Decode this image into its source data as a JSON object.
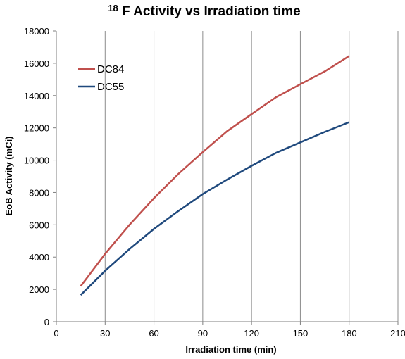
{
  "chart_data": {
    "type": "line",
    "title": {
      "superscript": "18",
      "main": "F  Activity vs Irradiation time"
    },
    "xlabel": "Irradiation time (min)",
    "ylabel": "EoB Activity (mCi)",
    "xlim": [
      0,
      210
    ],
    "ylim": [
      0,
      18000
    ],
    "x_ticks": [
      0,
      30,
      60,
      90,
      120,
      150,
      180,
      210
    ],
    "y_ticks": [
      0,
      2000,
      4000,
      6000,
      8000,
      10000,
      12000,
      14000,
      16000,
      18000
    ],
    "grid": "vertical",
    "legend_position": "top-left",
    "series": [
      {
        "name": "DC84",
        "color": "#c0504d",
        "x": [
          15,
          30,
          45,
          60,
          75,
          90,
          105,
          120,
          135,
          150,
          165,
          180
        ],
        "y": [
          2200,
          4200,
          6000,
          7650,
          9150,
          10500,
          11800,
          12850,
          13900,
          14700,
          15500,
          16450
        ]
      },
      {
        "name": "DC55",
        "color": "#1f497d",
        "x": [
          15,
          30,
          45,
          60,
          75,
          90,
          105,
          120,
          135,
          150,
          165,
          180
        ],
        "y": [
          1650,
          3150,
          4500,
          5750,
          6850,
          7900,
          8800,
          9650,
          10450,
          11100,
          11750,
          12350
        ]
      }
    ]
  }
}
